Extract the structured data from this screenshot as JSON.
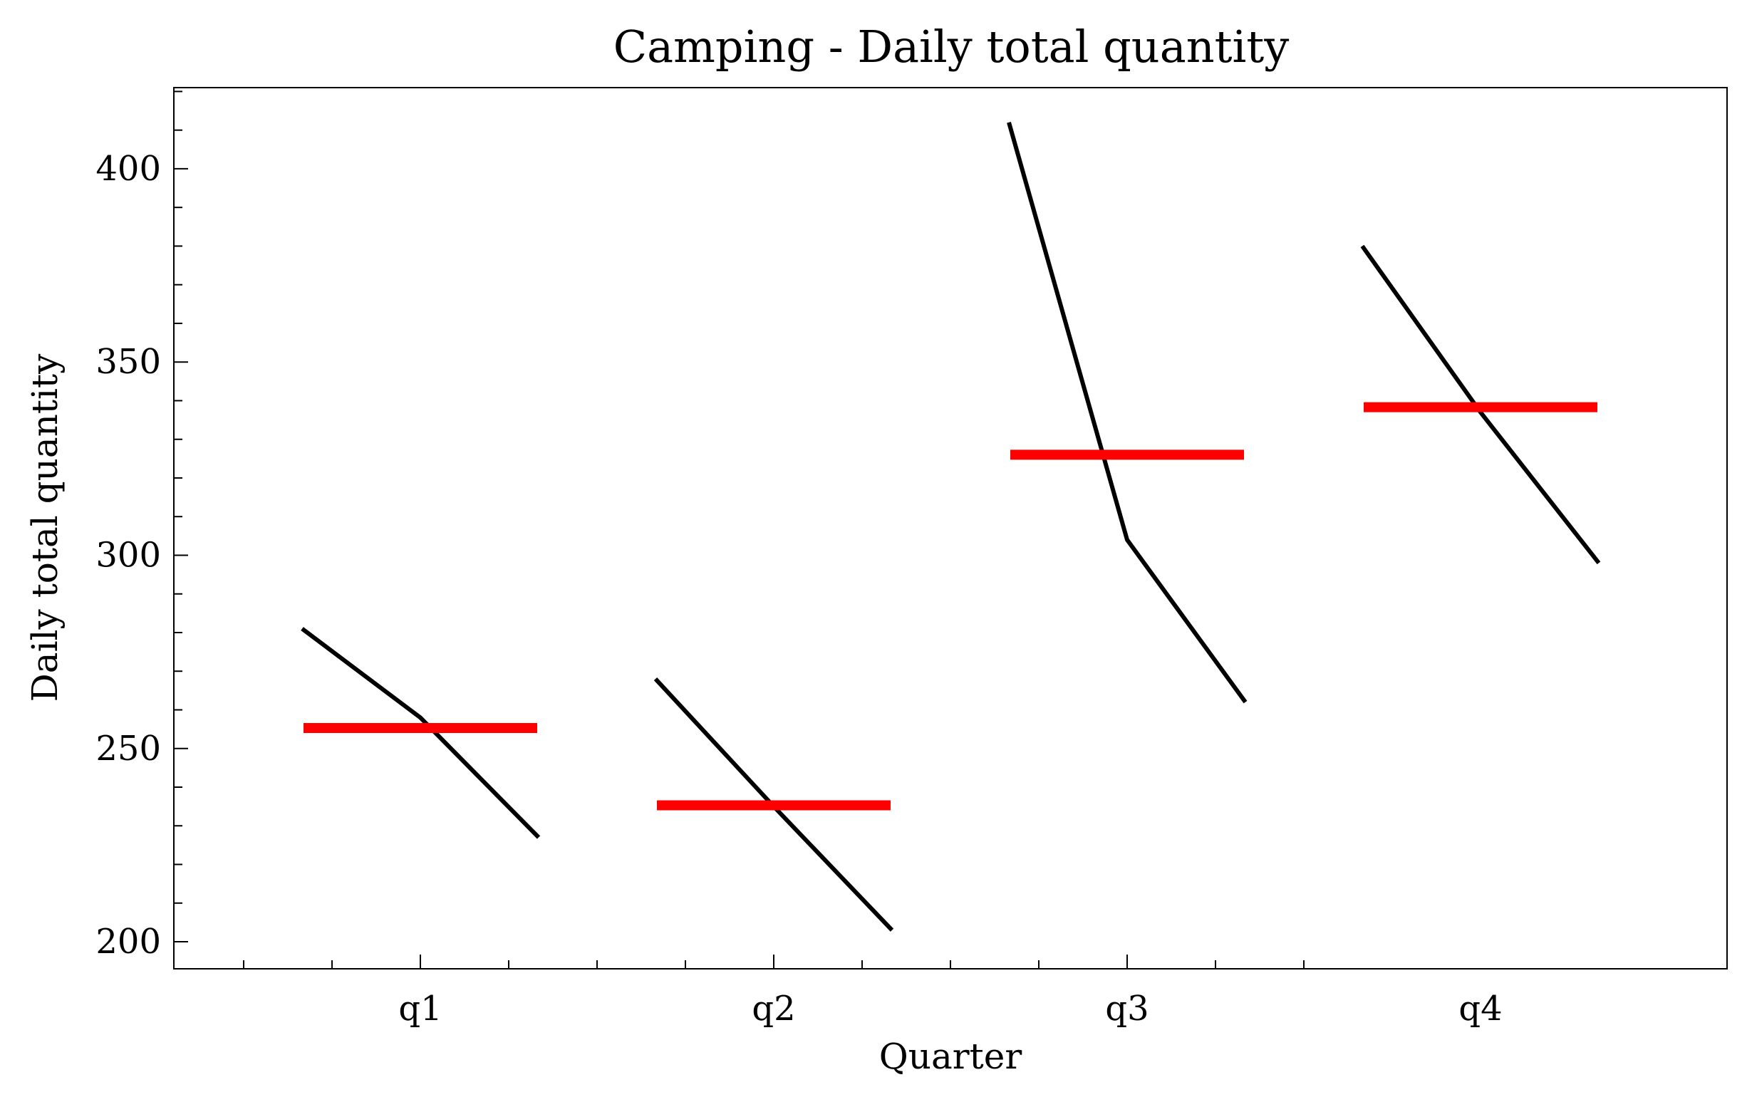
{
  "chart_data": {
    "type": "line",
    "title": "Camping - Daily total quantity",
    "xlabel": "Quarter",
    "ylabel": "Daily total quantity",
    "categories": [
      "q1",
      "q2",
      "q3",
      "q4"
    ],
    "ylim": [
      193,
      421
    ],
    "yticks": [
      200,
      250,
      300,
      350,
      400
    ],
    "yticklabels": [
      "200",
      "250",
      "300",
      "350",
      "400"
    ],
    "grid": false,
    "legend": "none",
    "groups": [
      {
        "category": "q1",
        "points": [
          281,
          258,
          227
        ],
        "mean": 255.3
      },
      {
        "category": "q2",
        "points": [
          268,
          235,
          203
        ],
        "mean": 235.3
      },
      {
        "category": "q3",
        "points": [
          412,
          304,
          262
        ],
        "mean": 326.0
      },
      {
        "category": "q4",
        "points": [
          380,
          337,
          298
        ],
        "mean": 338.3
      }
    ],
    "colors": {
      "line": "#000000",
      "mean": "#ff0000"
    }
  }
}
